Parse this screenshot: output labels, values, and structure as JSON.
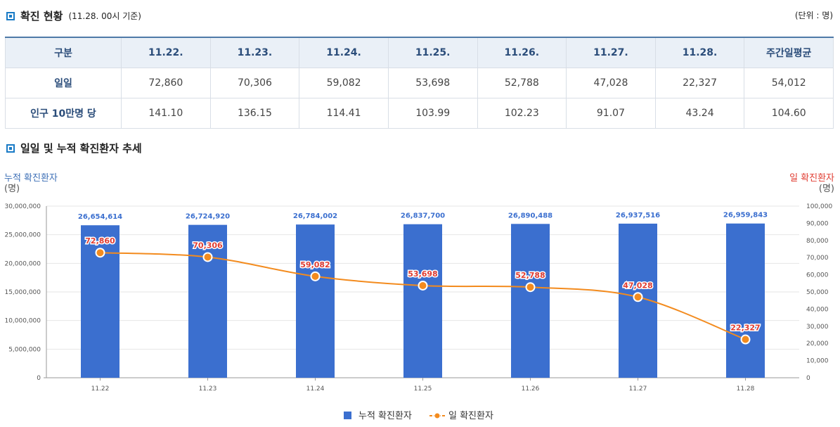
{
  "status_section": {
    "title": "확진 현황",
    "subtitle": "(11.28. 00시 기준)",
    "unit": "(단위 : 명)"
  },
  "table": {
    "headers": [
      "구분",
      "11.22.",
      "11.23.",
      "11.24.",
      "11.25.",
      "11.26.",
      "11.27.",
      "11.28.",
      "주간일평균"
    ],
    "rows": [
      [
        "일일",
        "72,860",
        "70,306",
        "59,082",
        "53,698",
        "52,788",
        "47,028",
        "22,327",
        "54,012"
      ],
      [
        "인구 10만명 당",
        "141.10",
        "136.15",
        "114.41",
        "103.99",
        "102.23",
        "91.07",
        "43.24",
        "104.60"
      ]
    ]
  },
  "trend_section": {
    "title": "일일 및 누적 확진환자 추세"
  },
  "chart_data": {
    "type": "bar",
    "categories": [
      "11.22",
      "11.23",
      "11.24",
      "11.25",
      "11.26",
      "11.27",
      "11.28"
    ],
    "series": [
      {
        "name": "누적 확진환자",
        "type": "bar",
        "axis": "left",
        "values": [
          26654614,
          26724920,
          26784002,
          26837700,
          26890488,
          26937516,
          26959843
        ],
        "labels": [
          "26,654,614",
          "26,724,920",
          "26,784,002",
          "26,837,700",
          "26,890,488",
          "26,937,516",
          "26,959,843"
        ]
      },
      {
        "name": "일 확진환자",
        "type": "line",
        "axis": "right",
        "values": [
          72860,
          70306,
          59082,
          53698,
          52788,
          47028,
          22327
        ],
        "labels": [
          "72,860",
          "70,306",
          "59,082",
          "53,698",
          "52,788",
          "47,028",
          "22,327"
        ]
      }
    ],
    "left_axis": {
      "title": "누적 확진환자",
      "unit": "(명)",
      "ylim": [
        0,
        30000000
      ],
      "ticks": [
        "30,000,000",
        "25,000,000",
        "20,000,000",
        "15,000,000",
        "10,000,000",
        "5,000,000",
        "0"
      ]
    },
    "right_axis": {
      "title": "일 확진환자",
      "unit": "(명)",
      "ylim": [
        0,
        100000
      ],
      "ticks": [
        "100,000",
        "90,000",
        "80,000",
        "70,000",
        "60,000",
        "50,000",
        "40,000",
        "30,000",
        "20,000",
        "10,000",
        "0"
      ]
    },
    "grid": true,
    "legend_position": "bottom-center",
    "colors": {
      "bar": "#3b6fcf",
      "bar_label": "#3b6fcf",
      "line": "#f38b1e",
      "line_label": "#e03c31",
      "left_title": "#3d6fb6",
      "right_title": "#e03c31"
    }
  }
}
